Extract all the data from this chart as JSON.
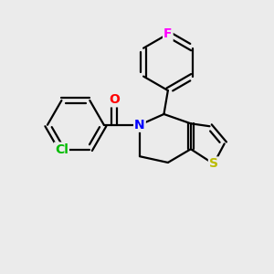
{
  "background_color": "#ebebeb",
  "bond_color": "#000000",
  "bond_width": 1.6,
  "atom_colors": {
    "F": "#ff00ff",
    "Cl": "#00bb00",
    "O": "#ff0000",
    "N": "#0000ff",
    "S": "#bbbb00"
  },
  "atom_fontsizes": {
    "F": 10,
    "Cl": 10,
    "O": 10,
    "N": 10,
    "S": 10
  }
}
